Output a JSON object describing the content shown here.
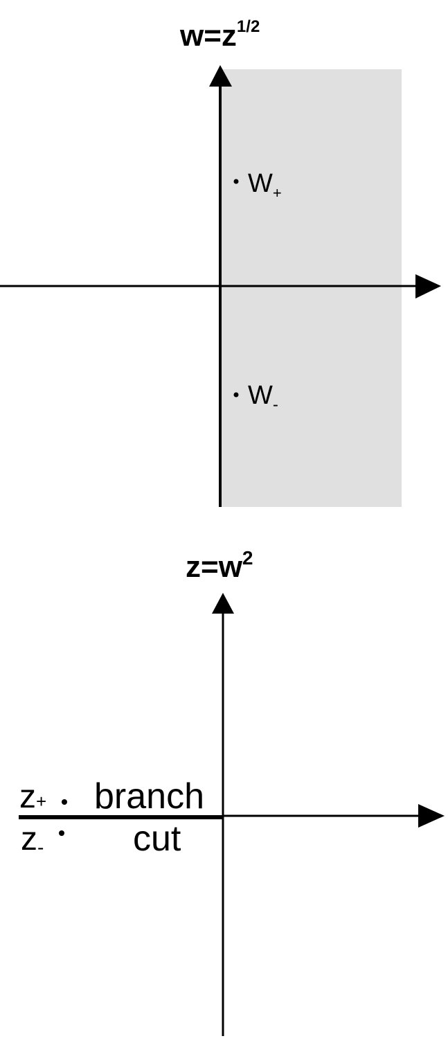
{
  "top_panel": {
    "title_base": "w=z",
    "title_exponent": "1/2",
    "point_upper_letter": "W",
    "point_upper_sub": "+",
    "point_lower_letter": "W",
    "point_lower_sub": "-",
    "shaded_region_color": "#e0e0e0"
  },
  "bottom_panel": {
    "title_base": "z=w",
    "title_exponent": "2",
    "point_upper_letter": "z",
    "point_upper_sub": "+",
    "point_lower_letter": "z",
    "point_lower_sub": "-",
    "cut_label_line1": "branch",
    "cut_label_line2": "cut"
  },
  "colors": {
    "axis": "#000000",
    "background": "#ffffff"
  }
}
